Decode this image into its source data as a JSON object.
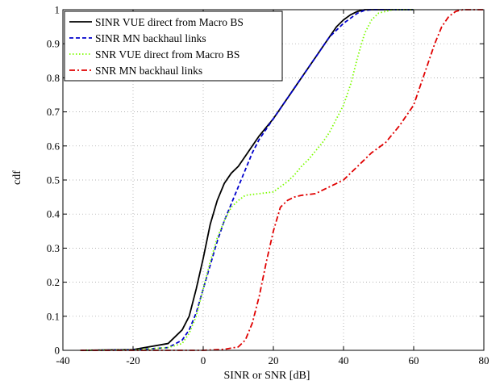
{
  "chart_data": {
    "type": "line",
    "title": "",
    "xlabel": "SINR or SNR [dB]",
    "ylabel": "cdf",
    "xlim": [
      -40,
      80
    ],
    "ylim": [
      0,
      1
    ],
    "xticks": [
      -40,
      -20,
      0,
      20,
      40,
      60,
      80
    ],
    "yticks": [
      0,
      0.1,
      0.2,
      0.3,
      0.4,
      0.5,
      0.6,
      0.7,
      0.8,
      0.9,
      1
    ],
    "grid": true,
    "legend_position": "top-left",
    "series": [
      {
        "name": "SINR VUE direct from Macro BS",
        "color": "#000000",
        "style": "solid",
        "points": [
          [
            -35,
            0
          ],
          [
            -20,
            0.002
          ],
          [
            -10,
            0.02
          ],
          [
            -6,
            0.06
          ],
          [
            -4,
            0.1
          ],
          [
            -2,
            0.18
          ],
          [
            0,
            0.27
          ],
          [
            2,
            0.37
          ],
          [
            4,
            0.44
          ],
          [
            6,
            0.49
          ],
          [
            8,
            0.52
          ],
          [
            10,
            0.54
          ],
          [
            12,
            0.57
          ],
          [
            14,
            0.6
          ],
          [
            16,
            0.63
          ],
          [
            18,
            0.655
          ],
          [
            20,
            0.68
          ],
          [
            22,
            0.71
          ],
          [
            24,
            0.74
          ],
          [
            26,
            0.77
          ],
          [
            28,
            0.8
          ],
          [
            30,
            0.83
          ],
          [
            32,
            0.86
          ],
          [
            34,
            0.89
          ],
          [
            36,
            0.92
          ],
          [
            38,
            0.95
          ],
          [
            40,
            0.97
          ],
          [
            42,
            0.985
          ],
          [
            44,
            0.995
          ],
          [
            46,
            1.0
          ],
          [
            60,
            1.0
          ]
        ]
      },
      {
        "name": "SINR MN backhaul links",
        "color": "#0000cc",
        "style": "dashed",
        "points": [
          [
            -35,
            0
          ],
          [
            -20,
            0.001
          ],
          [
            -10,
            0.008
          ],
          [
            -6,
            0.03
          ],
          [
            -4,
            0.06
          ],
          [
            -2,
            0.11
          ],
          [
            0,
            0.18
          ],
          [
            2,
            0.25
          ],
          [
            4,
            0.32
          ],
          [
            6,
            0.38
          ],
          [
            8,
            0.43
          ],
          [
            10,
            0.48
          ],
          [
            12,
            0.53
          ],
          [
            14,
            0.58
          ],
          [
            16,
            0.62
          ],
          [
            18,
            0.65
          ],
          [
            20,
            0.68
          ],
          [
            22,
            0.71
          ],
          [
            24,
            0.74
          ],
          [
            26,
            0.77
          ],
          [
            28,
            0.8
          ],
          [
            30,
            0.83
          ],
          [
            32,
            0.86
          ],
          [
            34,
            0.89
          ],
          [
            36,
            0.92
          ],
          [
            38,
            0.94
          ],
          [
            40,
            0.96
          ],
          [
            42,
            0.975
          ],
          [
            44,
            0.99
          ],
          [
            46,
            0.998
          ],
          [
            48,
            1.0
          ],
          [
            60,
            1.0
          ]
        ]
      },
      {
        "name": "SNR VUE direct from Macro BS",
        "color": "#7cfc00",
        "style": "dotted",
        "points": [
          [
            -35,
            0
          ],
          [
            -20,
            0.001
          ],
          [
            -10,
            0.008
          ],
          [
            -6,
            0.02
          ],
          [
            -4,
            0.05
          ],
          [
            -2,
            0.1
          ],
          [
            0,
            0.18
          ],
          [
            2,
            0.26
          ],
          [
            4,
            0.33
          ],
          [
            6,
            0.38
          ],
          [
            8,
            0.42
          ],
          [
            10,
            0.44
          ],
          [
            12,
            0.455
          ],
          [
            16,
            0.46
          ],
          [
            20,
            0.465
          ],
          [
            22,
            0.48
          ],
          [
            24,
            0.495
          ],
          [
            26,
            0.515
          ],
          [
            28,
            0.54
          ],
          [
            30,
            0.56
          ],
          [
            32,
            0.585
          ],
          [
            34,
            0.61
          ],
          [
            36,
            0.64
          ],
          [
            38,
            0.68
          ],
          [
            40,
            0.72
          ],
          [
            42,
            0.78
          ],
          [
            44,
            0.86
          ],
          [
            46,
            0.93
          ],
          [
            48,
            0.97
          ],
          [
            50,
            0.99
          ],
          [
            54,
            1.0
          ],
          [
            60,
            1.0
          ]
        ]
      },
      {
        "name": "SNR MN backhaul links",
        "color": "#e00000",
        "style": "dashdot",
        "points": [
          [
            -35,
            0
          ],
          [
            0,
            0.0
          ],
          [
            6,
            0.003
          ],
          [
            10,
            0.01
          ],
          [
            12,
            0.03
          ],
          [
            14,
            0.08
          ],
          [
            16,
            0.16
          ],
          [
            18,
            0.26
          ],
          [
            20,
            0.35
          ],
          [
            22,
            0.42
          ],
          [
            24,
            0.44
          ],
          [
            26,
            0.45
          ],
          [
            28,
            0.455
          ],
          [
            32,
            0.46
          ],
          [
            36,
            0.48
          ],
          [
            40,
            0.5
          ],
          [
            44,
            0.54
          ],
          [
            48,
            0.58
          ],
          [
            52,
            0.61
          ],
          [
            56,
            0.66
          ],
          [
            60,
            0.72
          ],
          [
            62,
            0.78
          ],
          [
            64,
            0.84
          ],
          [
            66,
            0.9
          ],
          [
            68,
            0.95
          ],
          [
            70,
            0.98
          ],
          [
            72,
            0.995
          ],
          [
            74,
            1.0
          ],
          [
            80,
            1.0
          ]
        ]
      }
    ]
  }
}
